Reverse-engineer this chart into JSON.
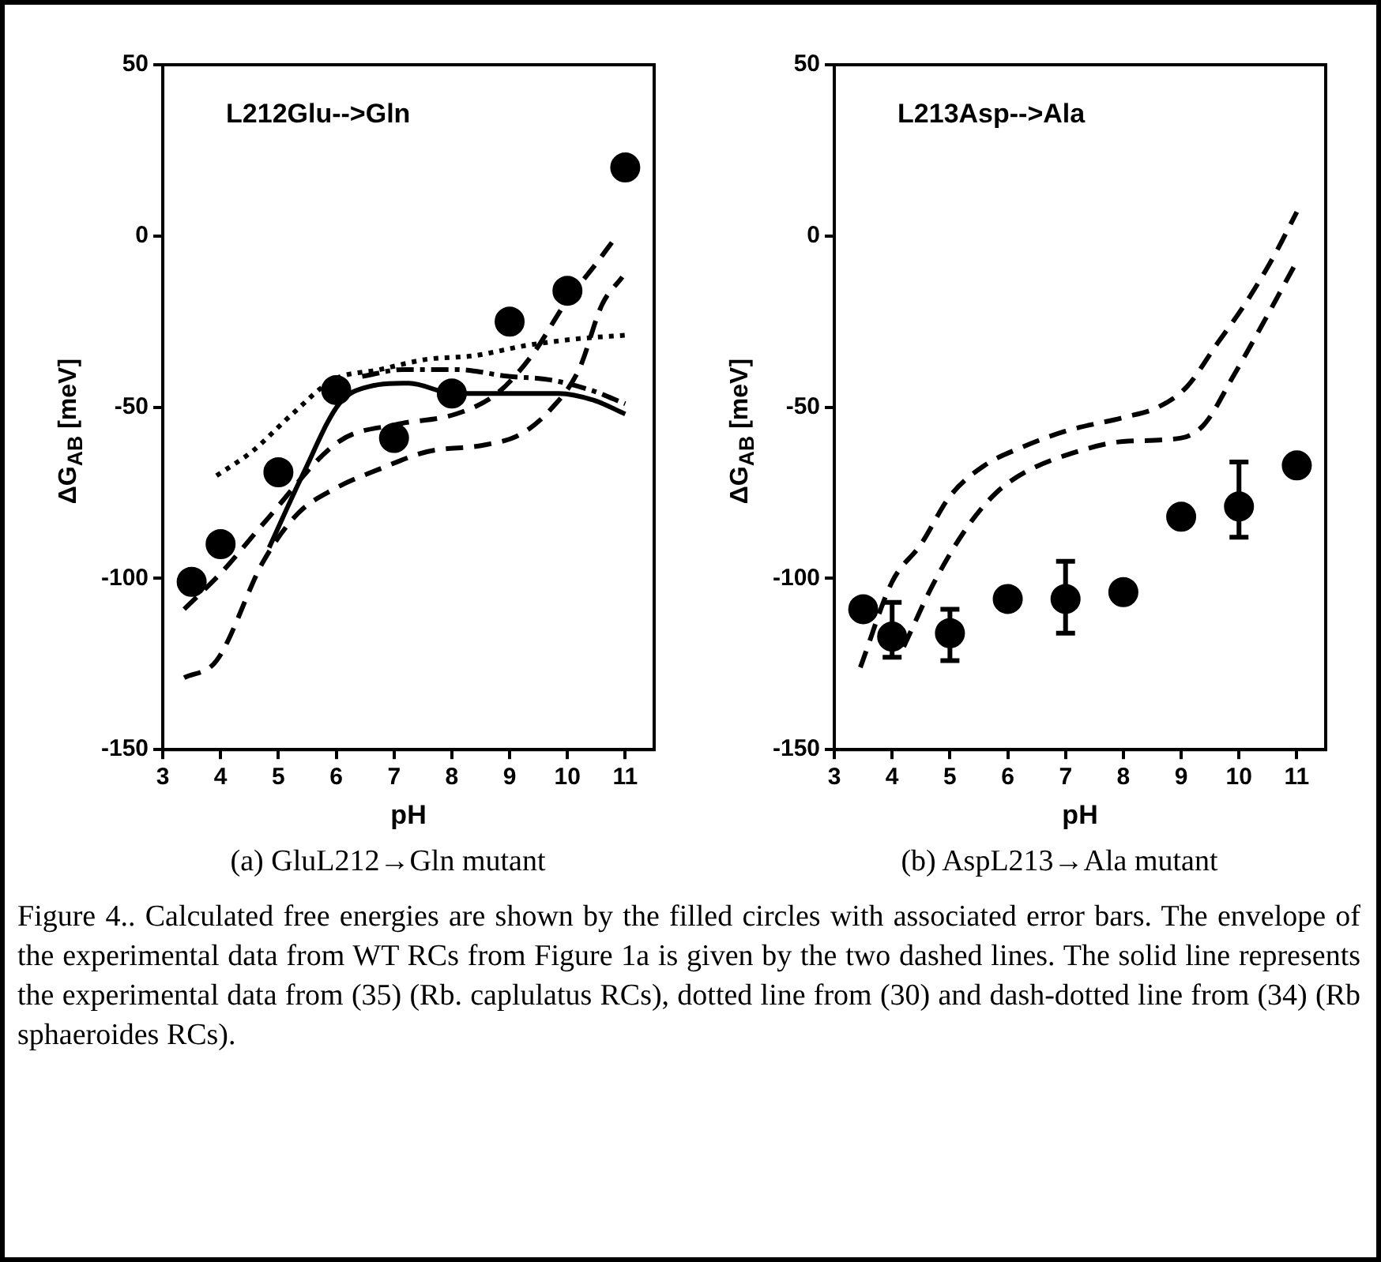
{
  "chart_data": [
    {
      "type": "scatter",
      "title": "L212Glu-->Gln",
      "xlabel": "pH",
      "ylabel": "ΔG$_{AB}$ [meV]",
      "xlim": [
        3,
        11.5
      ],
      "ylim": [
        -150,
        50
      ],
      "xticks": [
        3,
        4,
        5,
        6,
        7,
        8,
        9,
        10,
        11
      ],
      "yticks": [
        -150,
        -100,
        -50,
        0,
        50
      ],
      "grid": false,
      "legend": false,
      "annotations": [
        "(a) GluL212→Gln mutant"
      ],
      "series": [
        {
          "type": "line",
          "line_style": "dashed",
          "marker": "none",
          "color": "#000000",
          "x": [
            3.37,
            3.93,
            4.74,
            5.34,
            5.95,
            6.76,
            7.57,
            8.58,
            9.18,
            9.69,
            10.2,
            10.6,
            10.95
          ],
          "values": [
            -129,
            -124,
            -95,
            -81,
            -74,
            -68,
            -63,
            -61,
            -58,
            -51,
            -39,
            -20,
            -12
          ]
        },
        {
          "type": "line",
          "line_style": "dashed",
          "marker": "none",
          "color": "#000000",
          "x": [
            3.37,
            4.03,
            4.74,
            6.05,
            7.06,
            8.07,
            8.78,
            9.38,
            9.99,
            10.5,
            10.85
          ],
          "values": [
            -109,
            -98,
            -84,
            -60,
            -55,
            -52,
            -46,
            -35,
            -19,
            -8,
            0
          ]
        },
        {
          "type": "line",
          "line_style": "solid",
          "marker": "none",
          "color": "#000000",
          "x": [
            4.84,
            5.44,
            6.05,
            6.56,
            7.26,
            8.03,
            8.84,
            9.85,
            10.46,
            11.0
          ],
          "values": [
            -91,
            -69,
            -49,
            -44,
            -43,
            -46,
            -46,
            -46,
            -48,
            -52
          ]
        },
        {
          "type": "line",
          "line_style": "dotted",
          "marker": "none",
          "color": "#000000",
          "x": [
            3.93,
            4.54,
            5.24,
            5.95,
            6.76,
            7.57,
            8.37,
            9.28,
            10.19,
            11.0
          ],
          "values": [
            -70,
            -63,
            -52,
            -42,
            -39,
            -36,
            -35,
            -32,
            -30,
            -29
          ]
        },
        {
          "type": "line",
          "line_style": "dashdot",
          "marker": "none",
          "color": "#000000",
          "x": [
            6.45,
            7.16,
            8.07,
            8.98,
            9.69,
            10.4,
            11.0
          ],
          "values": [
            -41,
            -39,
            -39,
            -41,
            -42,
            -45,
            -49
          ]
        },
        {
          "type": "scatter",
          "marker": "circle",
          "color": "#000000",
          "x": [
            3.5,
            4,
            5,
            6,
            7,
            8,
            9,
            10,
            11
          ],
          "values": [
            -101,
            -90,
            -69,
            -45,
            -59,
            -46,
            -25,
            -16,
            20
          ]
        }
      ]
    },
    {
      "type": "scatter",
      "title": "L213Asp-->Ala",
      "xlabel": "pH",
      "ylabel": "ΔG$_{AB}$ [meV]",
      "xlim": [
        3,
        11.5
      ],
      "ylim": [
        -150,
        50
      ],
      "xticks": [
        3,
        4,
        5,
        6,
        7,
        8,
        9,
        10,
        11
      ],
      "yticks": [
        -150,
        -100,
        -50,
        0,
        50
      ],
      "grid": false,
      "legend": false,
      "annotations": [
        "(b) AspL213→Ala mutant"
      ],
      "series": [
        {
          "type": "line",
          "line_style": "dashed",
          "marker": "none",
          "color": "#000000",
          "x": [
            3.45,
            4.0,
            4.5,
            5.0,
            5.6,
            6.2,
            7.0,
            8.0,
            8.6,
            9.1,
            9.6,
            10.1,
            10.6,
            11.0
          ],
          "values": [
            -126,
            -101,
            -90,
            -76,
            -67,
            -62,
            -57,
            -53,
            -50,
            -44,
            -32,
            -20,
            -6,
            7
          ]
        },
        {
          "type": "line",
          "line_style": "dashed",
          "marker": "none",
          "color": "#000000",
          "x": [
            4.2,
            4.7,
            5.3,
            5.8,
            6.3,
            7.2,
            8.0,
            9.0,
            9.4,
            9.9,
            10.4,
            10.95
          ],
          "values": [
            -120,
            -102,
            -85,
            -75,
            -69,
            -63,
            -60,
            -59,
            -55,
            -41,
            -26,
            -9
          ]
        },
        {
          "type": "scatter",
          "marker": "circle",
          "color": "#000000",
          "x": [
            3.5,
            4,
            5,
            6,
            7,
            8,
            9,
            10,
            11
          ],
          "values": [
            -109,
            -117,
            -116,
            -106,
            -106,
            -104,
            -82,
            -79,
            -67
          ],
          "errors": [
            null,
            [
              -123,
              -107
            ],
            [
              -124,
              -109
            ],
            null,
            [
              -116,
              -95
            ],
            null,
            null,
            [
              -88,
              -66
            ],
            null
          ]
        }
      ]
    },
    {
      "type": "other",
      "annotations": [
        "Figure 4.. Calculated free energies are shown by the filled circles with associated error bars. The envelope of the experimental data from WT RCs from Figure 1a is given by the two dashed lines. The solid line represents the experimental data from (35) (Rb. caplulatus RCs), dotted line from (30) and dash-dotted line from (34) (Rb sphaeroides RCs)."
      ]
    }
  ]
}
